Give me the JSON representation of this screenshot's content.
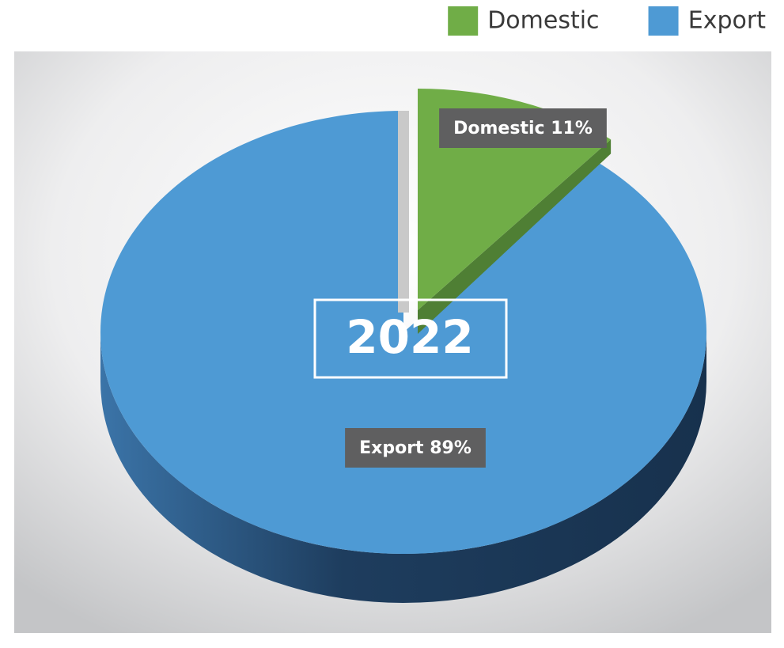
{
  "chart_data": {
    "type": "pie",
    "title": "2022",
    "categories": [
      "Domestic",
      "Export"
    ],
    "values": [
      11,
      89
    ],
    "value_labels": [
      "Domestic 11%",
      "Export 89%"
    ],
    "series": [
      {
        "name": "Domestic",
        "color": "#70ad47"
      },
      {
        "name": "Export",
        "color": "#4e9ad4"
      }
    ],
    "legend": "top-right"
  }
}
